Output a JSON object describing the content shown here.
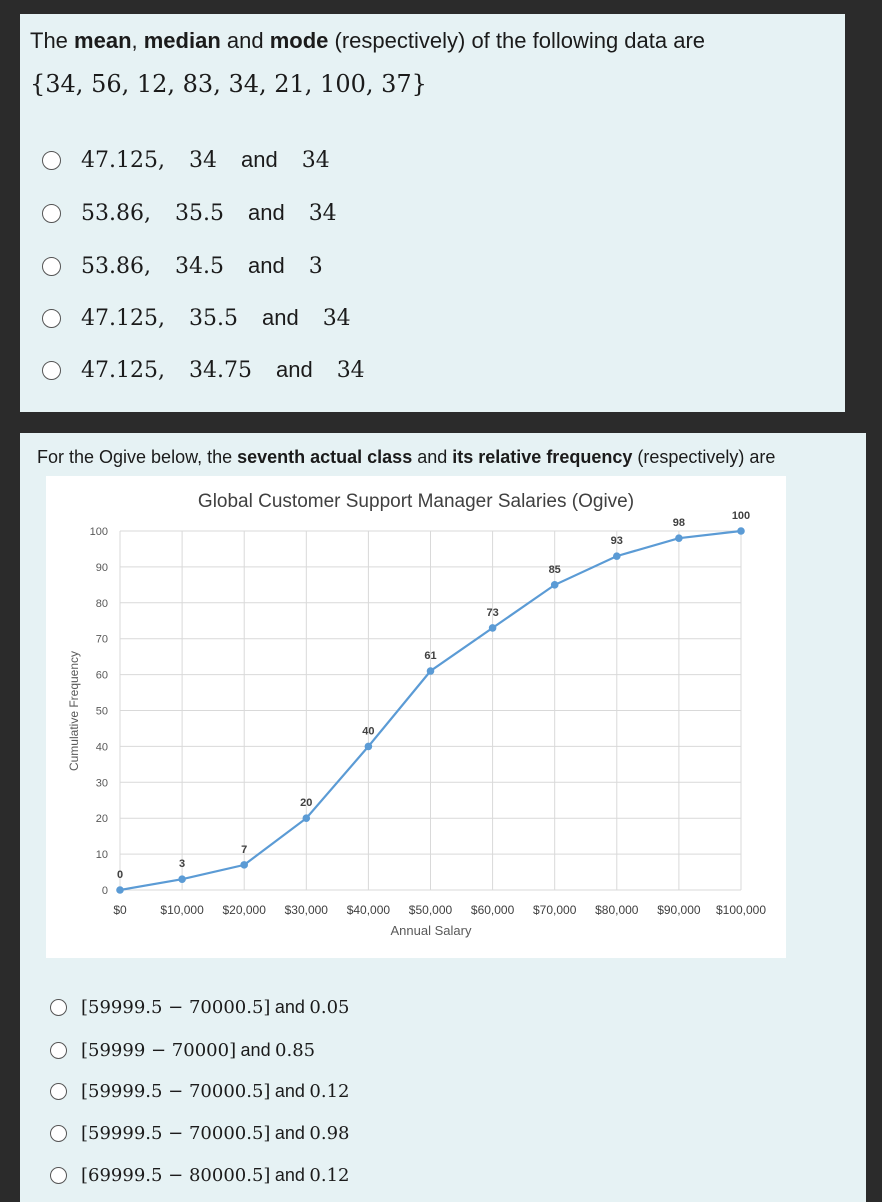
{
  "q1": {
    "text_pre": "The ",
    "b1": "mean",
    "sep1": ", ",
    "b2": "median",
    "sep2": " and ",
    "b3": "mode",
    "text_post": " (respectively) of the following data are",
    "data_set": "{34, 56, 12, 83, 34, 21, 100, 37}",
    "options": [
      {
        "mean": "47.125,",
        "median": "34",
        "and": "and",
        "mode": "34"
      },
      {
        "mean": "53.86,",
        "median": "35.5",
        "and": "and",
        "mode": "34"
      },
      {
        "mean": "53.86,",
        "median": "34.5",
        "and": "and",
        "mode": "3"
      },
      {
        "mean": "47.125,",
        "median": "35.5",
        "and": "and",
        "mode": "34"
      },
      {
        "mean": "47.125,",
        "median": "34.75",
        "and": "and",
        "mode": "34"
      }
    ]
  },
  "q2": {
    "text_pre": "For the Ogive below, the ",
    "b1": "seventh actual class",
    "sep": " and ",
    "b2": "its relative frequency",
    "text_post": " (respectively) are",
    "options": [
      {
        "interval": "[59999.5 − 70000.5]",
        "and": "and",
        "value": "0.05"
      },
      {
        "interval": "[59999 − 70000]",
        "and": "and",
        "value": "0.85"
      },
      {
        "interval": "[59999.5 − 70000.5]",
        "and": "and",
        "value": "0.12"
      },
      {
        "interval": "[59999.5 − 70000.5]",
        "and": "and",
        "value": "0.98"
      },
      {
        "interval": "[69999.5 − 80000.5]",
        "and": "and",
        "value": "0.12"
      }
    ]
  },
  "chart_data": {
    "type": "line",
    "title": "Global Customer Support Manager Salaries (Ogive)",
    "xlabel": "Annual Salary",
    "ylabel": "Cumulative Frequency",
    "x_tick_labels": [
      "$0",
      "$10,000",
      "$20,000",
      "$30,000",
      "$40,000",
      "$50,000",
      "$60,000",
      "$70,000",
      "$80,000",
      "$90,000",
      "$100,000"
    ],
    "y_tick_labels": [
      "0",
      "10",
      "20",
      "30",
      "40",
      "50",
      "60",
      "70",
      "80",
      "90",
      "100"
    ],
    "x": [
      0,
      10000,
      20000,
      30000,
      40000,
      50000,
      60000,
      70000,
      80000,
      90000,
      100000
    ],
    "values": [
      0,
      3,
      7,
      20,
      40,
      61,
      73,
      85,
      93,
      98,
      100
    ],
    "data_labels": [
      "0",
      "3",
      "7",
      "20",
      "40",
      "61",
      "73",
      "85",
      "93",
      "98",
      "100"
    ],
    "xlim": [
      0,
      100000
    ],
    "ylim": [
      0,
      100
    ],
    "grid": true,
    "legend": "none",
    "line_color": "#5b9bd5",
    "grid_color": "#d9d9d9"
  }
}
